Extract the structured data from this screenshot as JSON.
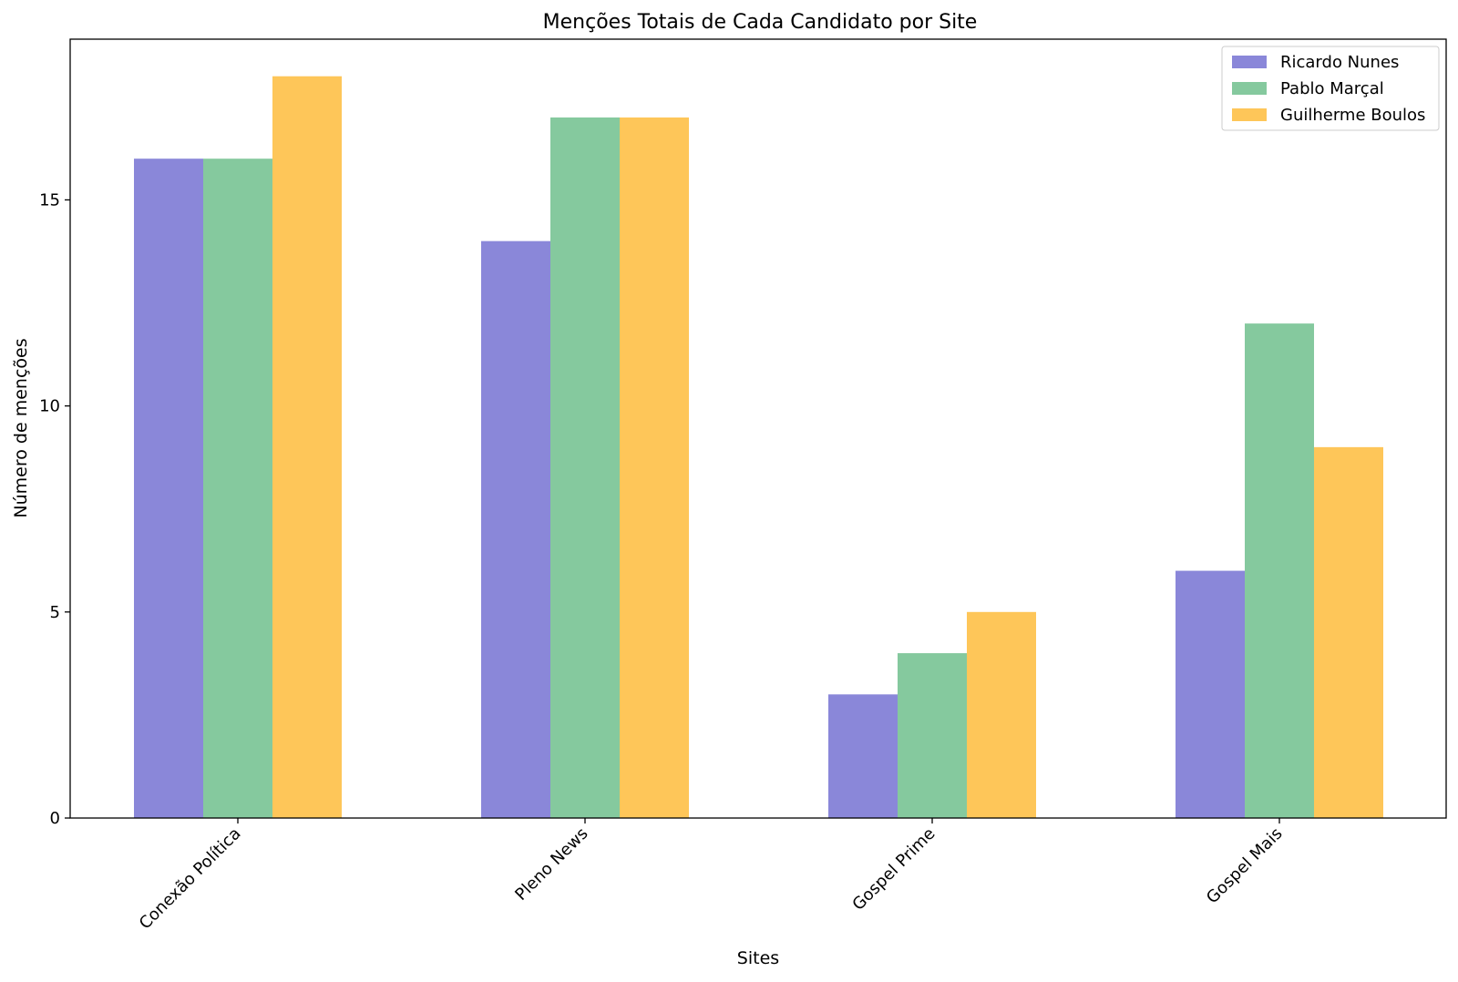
{
  "chart_data": {
    "type": "bar",
    "title": "Menções Totais de Cada Candidato por Site",
    "xlabel": "Sites",
    "ylabel": "Número de menções",
    "categories": [
      "Conexão Política",
      "Pleno News",
      "Gospel Prime",
      "Gospel Mais"
    ],
    "series": [
      {
        "name": "Ricardo Nunes",
        "color": "#8a87d9",
        "values": [
          16,
          14,
          3,
          6
        ]
      },
      {
        "name": "Pablo Marçal",
        "color": "#85c99e",
        "values": [
          16,
          17,
          4,
          12
        ]
      },
      {
        "name": "Guilherme Boulos",
        "color": "#fec659",
        "values": [
          18,
          17,
          5,
          9
        ]
      }
    ],
    "ylim": [
      0,
      18.9
    ],
    "yticks": [
      0,
      5,
      10,
      15
    ],
    "grid": false,
    "legend_position": "top-right"
  }
}
